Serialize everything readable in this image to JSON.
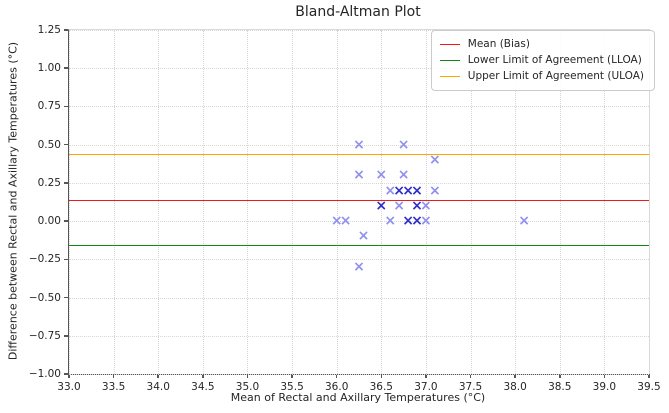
{
  "chart_data": {
    "type": "scatter",
    "title": "Bland-Altman Plot",
    "xlabel": "Mean of Rectal and Axillary Temperatures (°C)",
    "ylabel": "Difference between Rectal and Axillary Temperatures (°C)",
    "xlim": [
      33.0,
      39.5
    ],
    "ylim": [
      -1.0,
      1.25
    ],
    "grid": true,
    "legend_position": "upper right",
    "x_ticks": [
      "33.0",
      "33.5",
      "34.0",
      "34.5",
      "35.0",
      "35.5",
      "36.0",
      "36.5",
      "37.0",
      "37.5",
      "38.0",
      "38.5",
      "39.0",
      "39.5"
    ],
    "y_ticks": [
      "1.25",
      "1.00",
      "0.75",
      "0.50",
      "0.25",
      "0.00",
      "−0.25",
      "−0.50",
      "−0.75",
      "−1.00"
    ],
    "marker": "x",
    "marker_colors": {
      "single": "#9090ee",
      "overlap": "#2e2ec8"
    },
    "points": [
      {
        "x": 36.25,
        "y": 0.5,
        "count": 1
      },
      {
        "x": 36.75,
        "y": 0.5,
        "count": 1
      },
      {
        "x": 37.1,
        "y": 0.4,
        "count": 1
      },
      {
        "x": 36.25,
        "y": 0.3,
        "count": 1
      },
      {
        "x": 36.5,
        "y": 0.3,
        "count": 1
      },
      {
        "x": 36.75,
        "y": 0.3,
        "count": 1
      },
      {
        "x": 36.6,
        "y": 0.2,
        "count": 1
      },
      {
        "x": 36.7,
        "y": 0.2,
        "count": 2
      },
      {
        "x": 36.8,
        "y": 0.2,
        "count": 2
      },
      {
        "x": 36.9,
        "y": 0.2,
        "count": 2
      },
      {
        "x": 37.1,
        "y": 0.2,
        "count": 1
      },
      {
        "x": 36.5,
        "y": 0.1,
        "count": 2
      },
      {
        "x": 36.7,
        "y": 0.1,
        "count": 1
      },
      {
        "x": 36.9,
        "y": 0.1,
        "count": 2
      },
      {
        "x": 37.0,
        "y": 0.1,
        "count": 1
      },
      {
        "x": 36.0,
        "y": 0.0,
        "count": 1
      },
      {
        "x": 36.1,
        "y": 0.0,
        "count": 1
      },
      {
        "x": 36.6,
        "y": 0.0,
        "count": 1
      },
      {
        "x": 36.8,
        "y": 0.0,
        "count": 2
      },
      {
        "x": 36.9,
        "y": 0.0,
        "count": 2
      },
      {
        "x": 37.0,
        "y": 0.0,
        "count": 1
      },
      {
        "x": 38.1,
        "y": 0.0,
        "count": 1
      },
      {
        "x": 36.3,
        "y": -0.1,
        "count": 1
      },
      {
        "x": 36.25,
        "y": -0.3,
        "count": 1
      }
    ],
    "lines": [
      {
        "name": "mean-line",
        "label": "Mean (Bias)",
        "value": 0.13,
        "color": "#ed1c1c"
      },
      {
        "name": "lloa-line",
        "label": "Lower Limit of Agreement (LLOA)",
        "value": -0.16,
        "color": "#128a12"
      },
      {
        "name": "uloa-line",
        "label": "Upper Limit of Agreement (ULOA)",
        "value": 0.43,
        "color": "#ffa500"
      }
    ]
  }
}
